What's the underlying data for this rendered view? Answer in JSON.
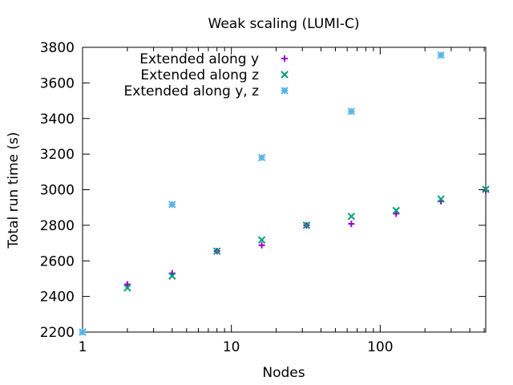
{
  "chart_data": {
    "type": "scatter",
    "title": "Weak scaling (LUMI-C)",
    "xlabel": "Nodes",
    "ylabel": "Total run time (s)",
    "xscale": "log",
    "xlim": [
      1,
      512
    ],
    "ylim": [
      2200,
      3800
    ],
    "xticks": [
      1,
      10,
      100
    ],
    "xtick_labels": [
      "1",
      "10",
      "100"
    ],
    "yticks": [
      2200,
      2400,
      2600,
      2800,
      3000,
      3200,
      3400,
      3600,
      3800
    ],
    "yticks_labels": [
      "2200",
      "2400",
      "2600",
      "2800",
      "3000",
      "3200",
      "3400",
      "3600",
      "3800"
    ],
    "grid": false,
    "legend_position": "top-left",
    "series": [
      {
        "name": "Extended along y",
        "marker": "plus",
        "color": "#9400d3",
        "points": [
          {
            "x": 1,
            "y": 2200
          },
          {
            "x": 2,
            "y": 2468
          },
          {
            "x": 4,
            "y": 2530
          },
          {
            "x": 8,
            "y": 2655
          },
          {
            "x": 16,
            "y": 2688
          },
          {
            "x": 32,
            "y": 2800
          },
          {
            "x": 64,
            "y": 2808
          },
          {
            "x": 128,
            "y": 2865
          },
          {
            "x": 256,
            "y": 2935
          },
          {
            "x": 512,
            "y": 2995
          }
        ]
      },
      {
        "name": "Extended along z",
        "marker": "cross",
        "color": "#009e73",
        "points": [
          {
            "x": 1,
            "y": 2200
          },
          {
            "x": 2,
            "y": 2448
          },
          {
            "x": 4,
            "y": 2515
          },
          {
            "x": 8,
            "y": 2655
          },
          {
            "x": 16,
            "y": 2718
          },
          {
            "x": 32,
            "y": 2800
          },
          {
            "x": 64,
            "y": 2850
          },
          {
            "x": 128,
            "y": 2883
          },
          {
            "x": 256,
            "y": 2948
          },
          {
            "x": 512,
            "y": 3002
          }
        ]
      },
      {
        "name": "Extended along y, z",
        "marker": "star",
        "color": "#56b4e9",
        "points": [
          {
            "x": 1,
            "y": 2200
          },
          {
            "x": 4,
            "y": 2917
          },
          {
            "x": 16,
            "y": 3180
          },
          {
            "x": 64,
            "y": 3440
          },
          {
            "x": 256,
            "y": 3756
          }
        ]
      }
    ]
  }
}
